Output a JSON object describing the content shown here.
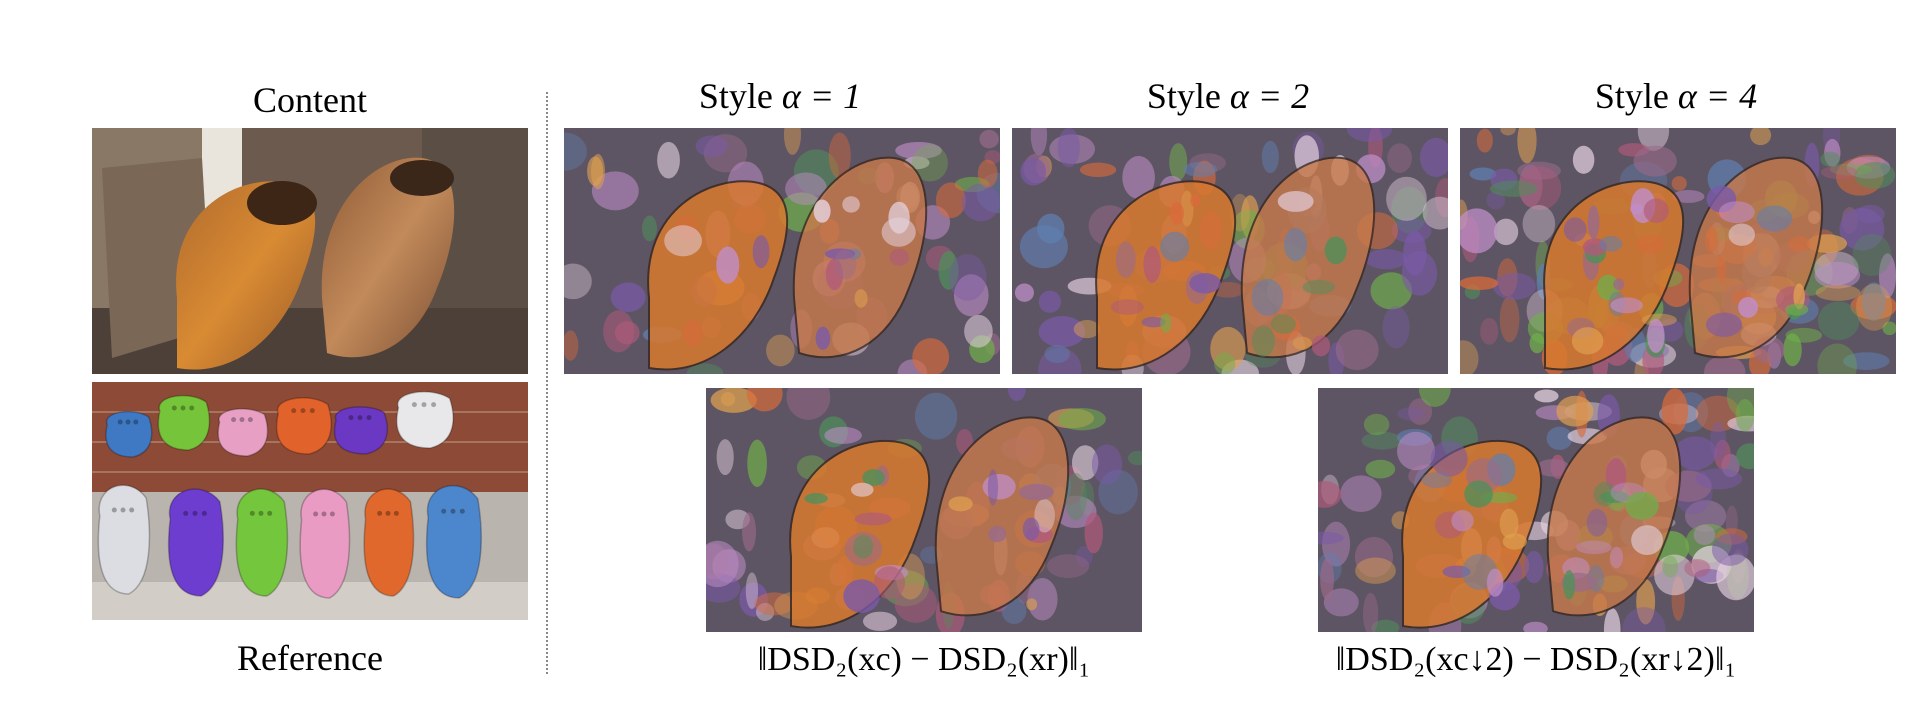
{
  "labels": {
    "content": "Content",
    "reference": "Reference",
    "style_prefix": "Style ",
    "alpha_1": "α = 1",
    "alpha_2": "α = 2",
    "alpha_4": "α = 4",
    "formula_left": "‖DSD₂(xc) − DSD₂(xr)‖₁",
    "formula_right": "‖DSD₂(xc↓2) − DSD₂(xr↓2)‖₁"
  },
  "colors": {
    "clog_orange": "#c9772a",
    "clog_brown": "#9a5d2c",
    "brick": "#8a4a33",
    "divider": "#888888"
  },
  "croc_colors": [
    "#3f79c4",
    "#76c43a",
    "#e7a0c4",
    "#e2622b",
    "#6a38c2",
    "#e8e8ea",
    "#dcdde3",
    "#6c3dcf",
    "#74c63c",
    "#ea9bc3",
    "#e0682c",
    "#4c86cc"
  ]
}
